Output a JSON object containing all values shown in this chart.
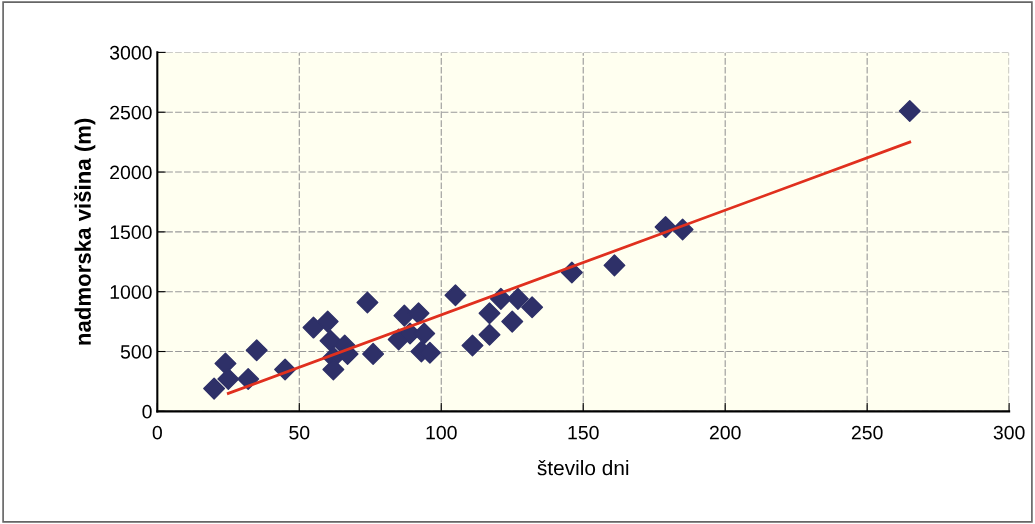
{
  "chart_data": {
    "type": "scatter",
    "xlabel": "število dni",
    "ylabel": "nadmorska višina (m)",
    "xlim": [
      0,
      300
    ],
    "xticks": [
      0,
      50,
      100,
      150,
      200,
      250,
      300
    ],
    "ylim": [
      0,
      3000
    ],
    "yticks": [
      0,
      500,
      1000,
      1500,
      2000,
      2500,
      3000
    ],
    "grid": true,
    "marker": "diamond",
    "legend": false,
    "series": [
      {
        "color": "#2e3068",
        "x": [
          20,
          24,
          25,
          32,
          35,
          45,
          55,
          60,
          61,
          62,
          62,
          66,
          67,
          74,
          76,
          85,
          87,
          89,
          92,
          94,
          93,
          96,
          105,
          109,
          111,
          117,
          117,
          121,
          125,
          127,
          132,
          146,
          161,
          179,
          185,
          265
        ],
        "values": [
          190,
          400,
          270,
          270,
          510,
          350,
          700,
          750,
          590,
          450,
          350,
          550,
          480,
          910,
          480,
          600,
          800,
          650,
          820,
          650,
          500,
          490,
          970,
          null,
          550,
          820,
          640,
          940,
          750,
          940,
          870,
          1160,
          1220,
          1540,
          1520,
          2510
        ]
      },
      {
        "type": "line",
        "color": "#e0301e",
        "x": [
          25,
          265
        ],
        "values": [
          150,
          2250
        ],
        "marker": "none",
        "line_style": "solid"
      }
    ]
  }
}
